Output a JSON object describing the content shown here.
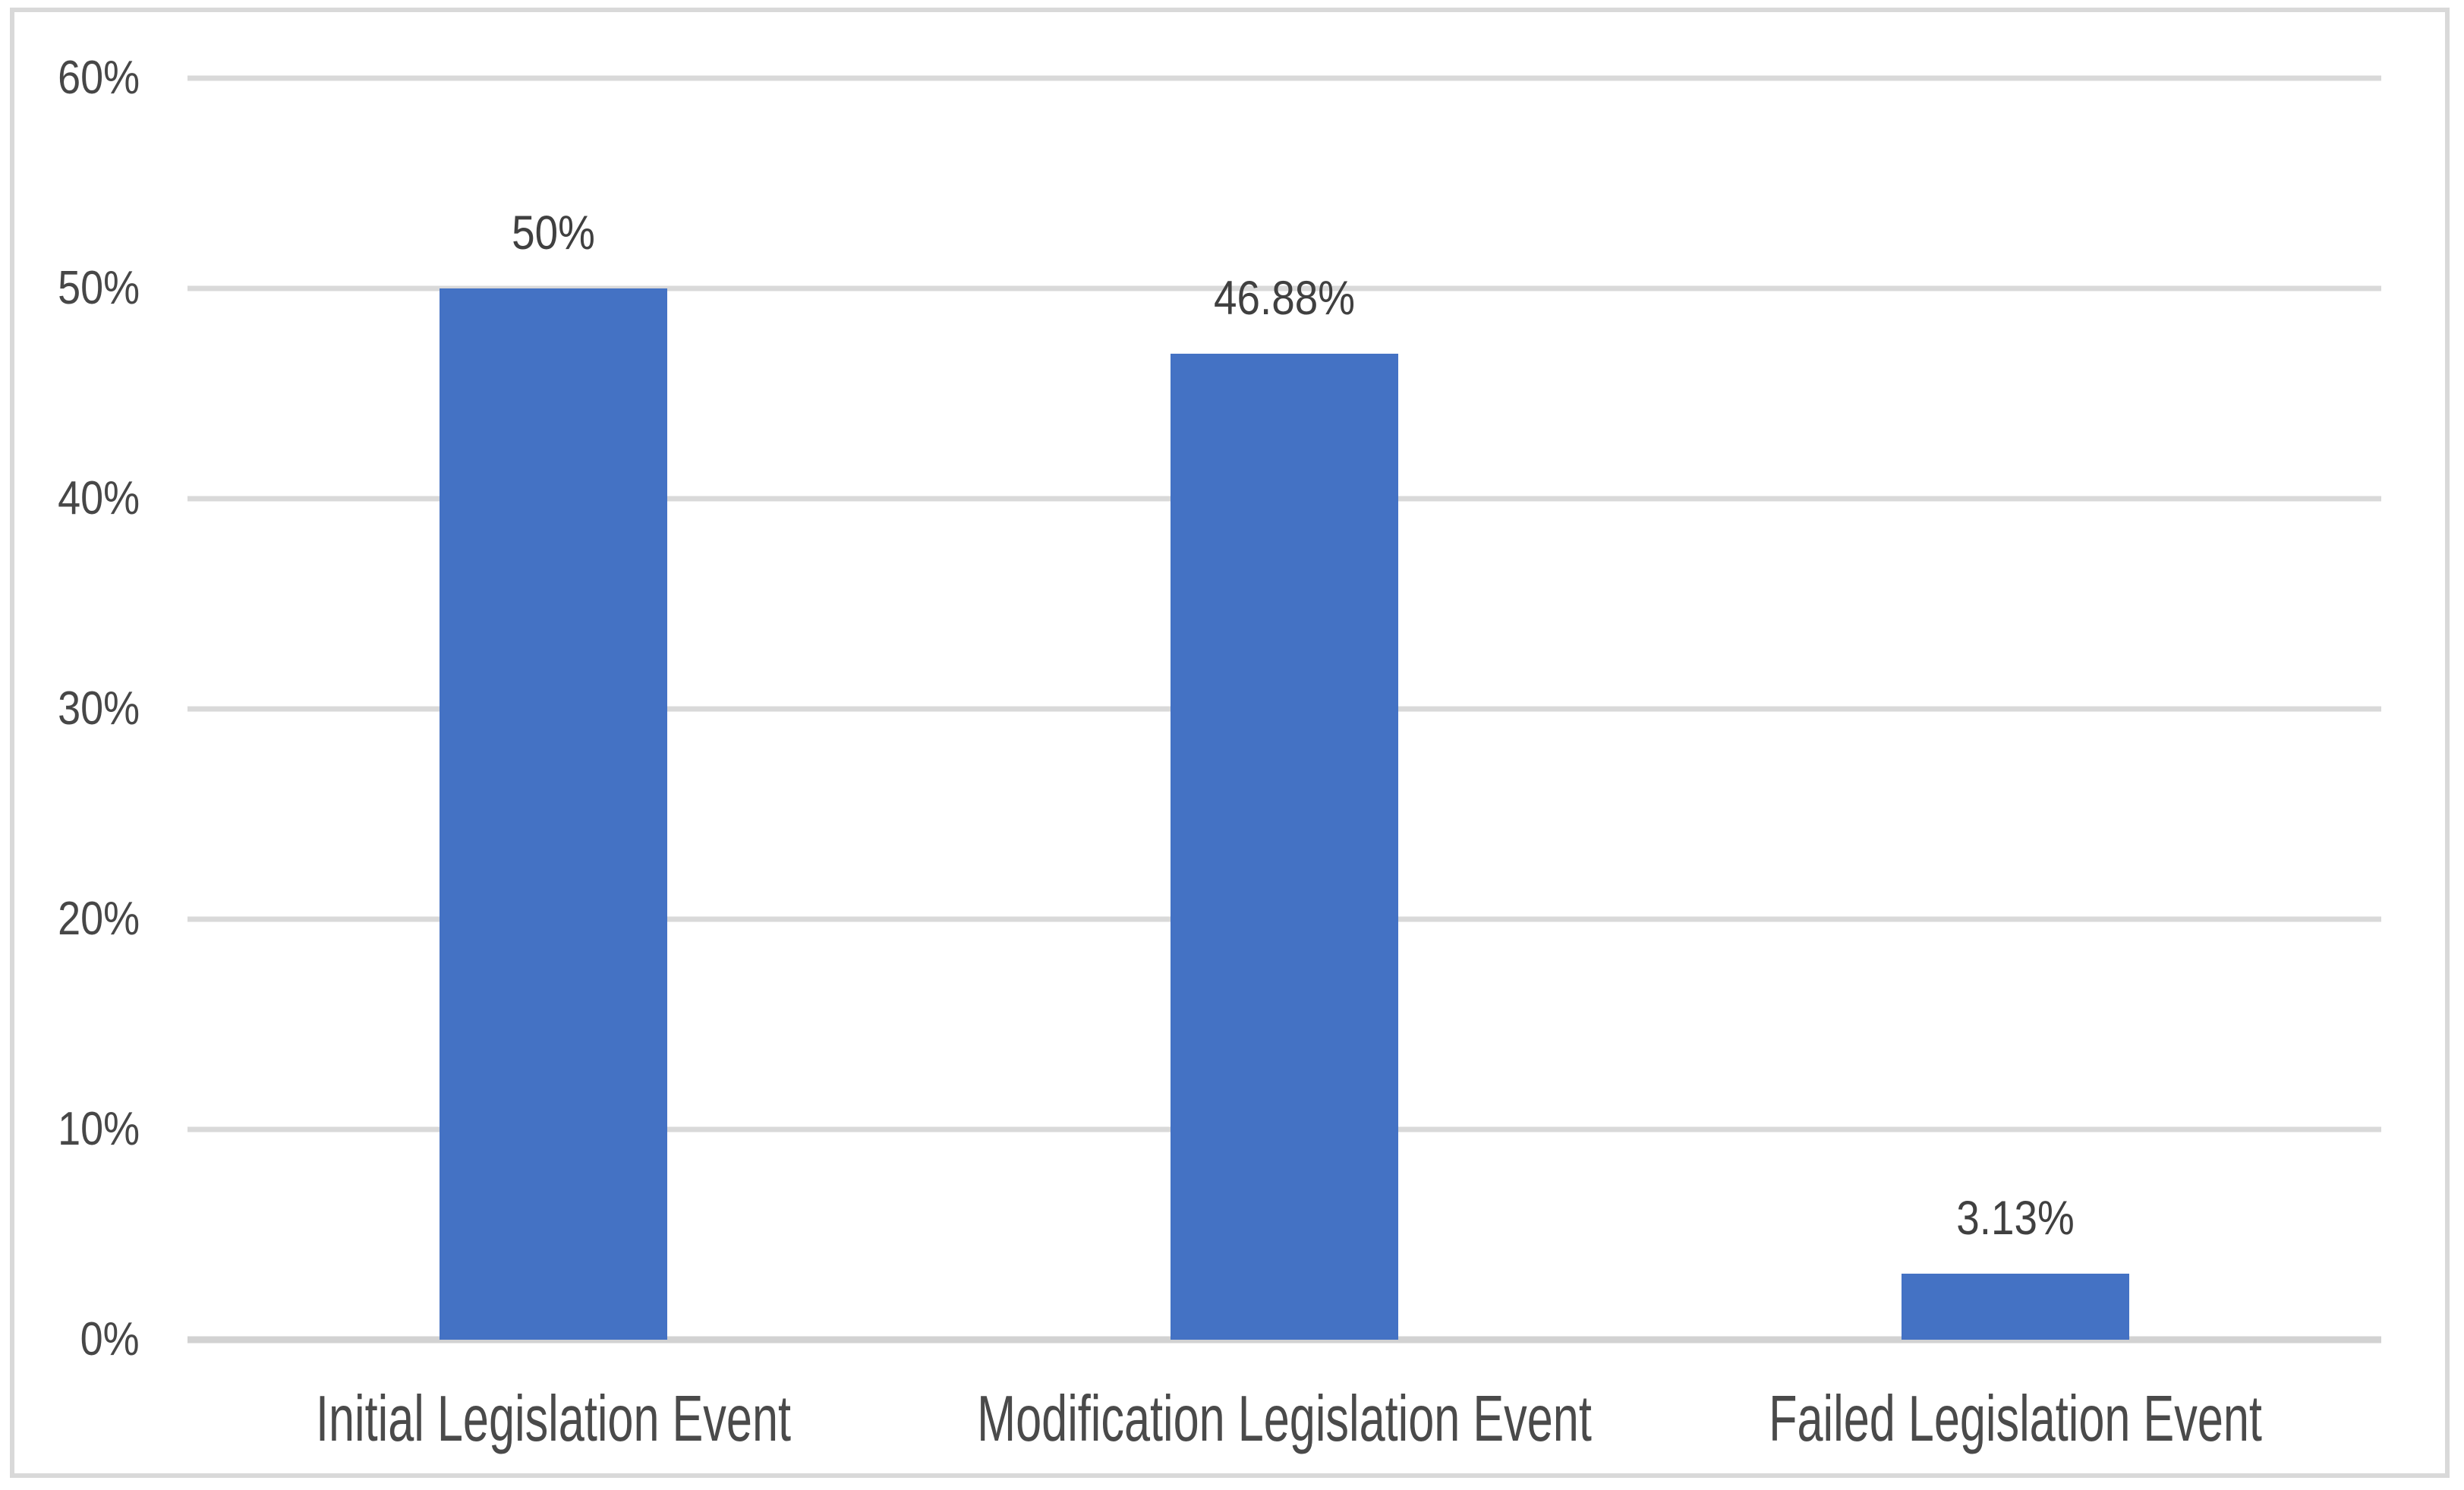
{
  "chart_data": {
    "type": "bar",
    "title": "",
    "categories": [
      "Initial Legislation Event",
      "Modification Legislation Event",
      "Failed Legislation Event"
    ],
    "values": [
      50,
      46.88,
      3.13
    ],
    "data_labels": [
      "50%",
      "46.88%",
      "3.13%"
    ],
    "y_ticks": [
      "60%",
      "50%",
      "40%",
      "30%",
      "20%",
      "10%",
      "0%"
    ],
    "y_tick_values": [
      60,
      50,
      40,
      30,
      20,
      10,
      0
    ],
    "ylim": [
      0,
      60
    ],
    "xlabel": "",
    "ylabel": "",
    "grid": true,
    "legend": false,
    "colors": {
      "bar_fill": "#4472C4",
      "gridline": "#D9D9D9",
      "axis_line": "#D2D2D2",
      "frame_border": "#D9D9D9",
      "tick_label_text": "#474747",
      "data_label_text": "#404040",
      "category_label_text": "#4A4A4A",
      "background": "#FFFFFF"
    }
  }
}
